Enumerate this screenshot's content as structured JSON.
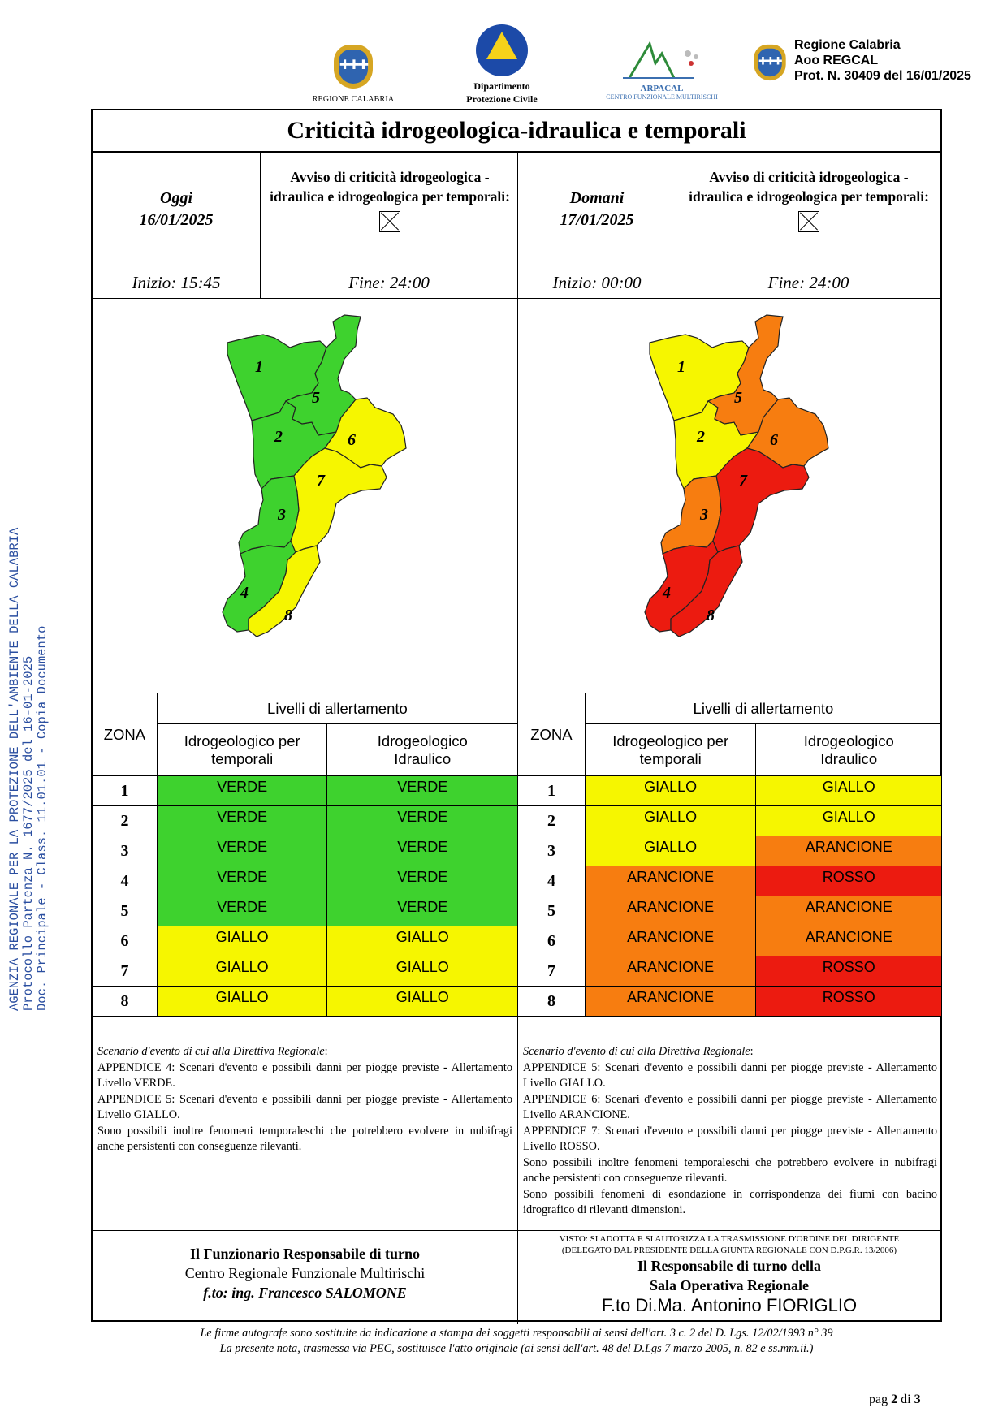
{
  "header": {
    "logo_regione": "REGIONE CALABRIA",
    "logo_dpc": [
      "Dipartimento",
      "Protezione Civile"
    ],
    "logo_arpacal": "ARPACAL",
    "logo_arpacal_sub": "CENTRO FUNZIONALE MULTIRISCHI",
    "prot": [
      "Regione Calabria",
      "Aoo REGCAL",
      "Prot. N. 30409 del 16/01/2025"
    ]
  },
  "side_stamp": [
    "AGENZIA REGIONALE PER LA PROTEZIONE DELL'AMBIENTE DELLA CALABRIA",
    "Protocollo Partenza N. 1677/2025 del 16-01-2025",
    "Doc. Principale - Class. 11.01.01 - Copia Documento"
  ],
  "title": "Criticità idrogeologica-idraulica e temporali",
  "avviso_text": "Avviso di criticità idrogeologica - idraulica e idrogeologica per temporali:",
  "today": {
    "label": "Oggi",
    "date": "16/01/2025",
    "start": "Inizio: 15:45",
    "end": "Fine: 24:00"
  },
  "tomorrow": {
    "label": "Domani",
    "date": "17/01/2025",
    "start": "Inizio: 00:00",
    "end": "Fine: 24:00"
  },
  "colors": {
    "VERDE": "#3ed22e",
    "GIALLO": "#f6f600",
    "ARANCIONE": "#f77d10",
    "ROSSO": "#ec1b10"
  },
  "table_headers": {
    "zona": "ZONA",
    "livelli": "Livelli di allertamento",
    "col1": [
      "Idrogeologico per",
      "temporali"
    ],
    "col2": [
      "Idrogeologico",
      "Idraulico"
    ]
  },
  "levels_today": [
    {
      "zone": "1",
      "temp": "VERDE",
      "idr": "VERDE"
    },
    {
      "zone": "2",
      "temp": "VERDE",
      "idr": "VERDE"
    },
    {
      "zone": "3",
      "temp": "VERDE",
      "idr": "VERDE"
    },
    {
      "zone": "4",
      "temp": "VERDE",
      "idr": "VERDE"
    },
    {
      "zone": "5",
      "temp": "VERDE",
      "idr": "VERDE"
    },
    {
      "zone": "6",
      "temp": "GIALLO",
      "idr": "GIALLO"
    },
    {
      "zone": "7",
      "temp": "GIALLO",
      "idr": "GIALLO"
    },
    {
      "zone": "8",
      "temp": "GIALLO",
      "idr": "GIALLO"
    }
  ],
  "levels_tomorrow": [
    {
      "zone": "1",
      "temp": "GIALLO",
      "idr": "GIALLO"
    },
    {
      "zone": "2",
      "temp": "GIALLO",
      "idr": "GIALLO"
    },
    {
      "zone": "3",
      "temp": "GIALLO",
      "idr": "ARANCIONE"
    },
    {
      "zone": "4",
      "temp": "ARANCIONE",
      "idr": "ROSSO"
    },
    {
      "zone": "5",
      "temp": "ARANCIONE",
      "idr": "ARANCIONE"
    },
    {
      "zone": "6",
      "temp": "ARANCIONE",
      "idr": "ARANCIONE"
    },
    {
      "zone": "7",
      "temp": "ARANCIONE",
      "idr": "ROSSO"
    },
    {
      "zone": "8",
      "temp": "ARANCIONE",
      "idr": "ROSSO"
    }
  ],
  "scenario_today": {
    "heading": "Scenario d'evento di cui alla Direttiva Regionale",
    "lines": [
      "APPENDICE 4: Scenari d'evento e possibili danni per piogge previste - Allertamento Livello VERDE.",
      "APPENDICE 5: Scenari d'evento e possibili danni per piogge previste - Allertamento Livello GIALLO.",
      "Sono possibili inoltre fenomeni temporaleschi che potrebbero evolvere in nubifragi anche persistenti con conseguenze rilevanti."
    ]
  },
  "scenario_tomorrow": {
    "heading": "Scenario d'evento di cui alla Direttiva Regionale",
    "lines": [
      "APPENDICE 5: Scenari d'evento e possibili danni per piogge previste - Allertamento Livello GIALLO.",
      "APPENDICE 6: Scenari d'evento e possibili danni per piogge previste - Allertamento Livello ARANCIONE.",
      "APPENDICE 7: Scenari d'evento e possibili danni per piogge previste - Allertamento Livello ROSSO.",
      "Sono possibili inoltre fenomeni temporaleschi che potrebbero evolvere in nubifragi anche persistenti con conseguenze rilevanti.",
      "Sono possibili fenomeni di esondazione in corrispondenza dei fiumi con bacino idrografico di rilevanti dimensioni."
    ]
  },
  "sign_left": {
    "role": "Il Funzionario Responsabile di turno",
    "office": "Centro Regionale Funzionale Multirischi",
    "name": "f.to: ing. Francesco SALOMONE"
  },
  "sign_right": {
    "visto1": "VISTO: SI ADOTTA E SI AUTORIZZA LA TRASMISSIONE D'ORDINE DEL DIRIGENTE",
    "visto2": "(DELEGATO DAL PRESIDENTE DELLA GIUNTA REGIONALE CON D.P.G.R. 13/2006)",
    "role1": "Il Responsabile di turno della",
    "role2": "Sala Operativa Regionale",
    "name": "F.to Di.Ma. Antonino FIORIGLIO"
  },
  "footnotes": [
    "Le firme autografe sono sostituite da indicazione a stampa dei soggetti responsabili ai sensi dell'art. 3 c. 2 del D. Lgs. 12/02/1993 n° 39",
    "La presente nota, trasmessa via PEC, sostituisce l'atto originale (ai sensi dell'art. 48 del D.Lgs 7 marzo 2005, n. 82 e ss.mm.ii.)"
  ],
  "page": {
    "prefix": "pag",
    "current": "2",
    "sep": "di",
    "total": "3"
  }
}
